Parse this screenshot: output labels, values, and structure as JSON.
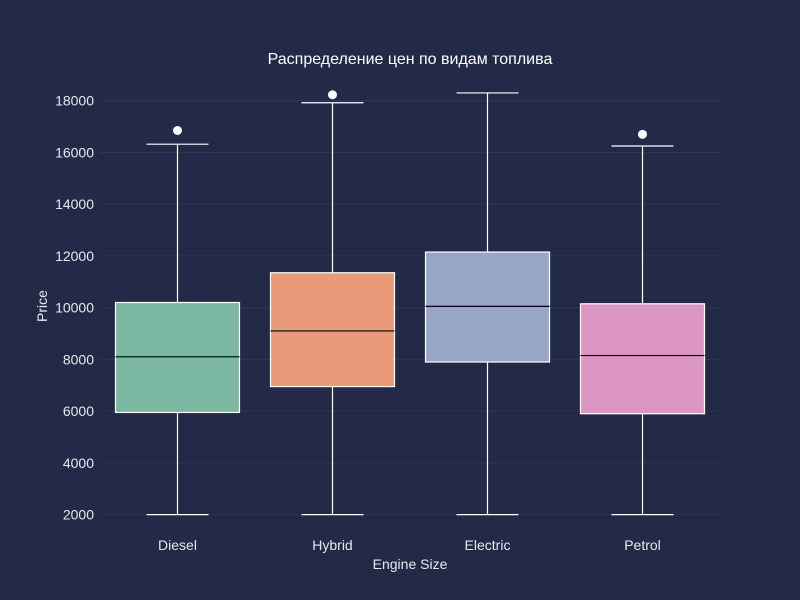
{
  "chart_data": {
    "type": "box",
    "title": "Распределение цен по видам топлива",
    "xlabel": "Engine Size",
    "ylabel": "Price",
    "ylim": [
      1600,
      18800
    ],
    "yticks": [
      2000,
      4000,
      6000,
      8000,
      10000,
      12000,
      14000,
      16000,
      18000
    ],
    "grid": true,
    "categories": [
      "Diesel",
      "Hybrid",
      "Electric",
      "Petrol"
    ],
    "boxes": [
      {
        "category": "Diesel",
        "min": 2000,
        "q1": 5950,
        "median": 8100,
        "q3": 10200,
        "max": 16320,
        "outliers": [
          16850
        ],
        "color": "#7ab8a2"
      },
      {
        "category": "Hybrid",
        "min": 2000,
        "q1": 6950,
        "median": 9100,
        "q3": 11350,
        "max": 17920,
        "outliers": [
          18230
        ],
        "color": "#e99a78"
      },
      {
        "category": "Electric",
        "min": 2000,
        "q1": 7900,
        "median": 10050,
        "q3": 12150,
        "max": 18300,
        "outliers": [],
        "color": "#97a6c6"
      },
      {
        "category": "Petrol",
        "min": 2000,
        "q1": 5900,
        "median": 8150,
        "q3": 10150,
        "max": 16250,
        "outliers": [
          16700
        ],
        "color": "#db97c2"
      }
    ]
  }
}
